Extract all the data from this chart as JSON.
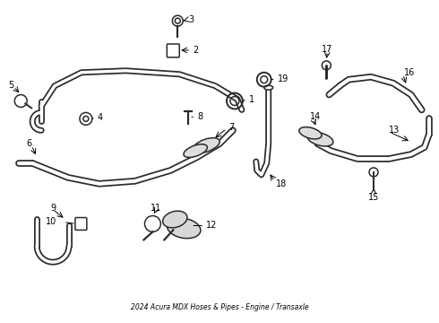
{
  "title": "2024 Acura MDX Hoses & Pipes - Engine / Transaxle",
  "bg_color": "#ffffff",
  "line_color": "#2a2a2a",
  "label_color": "#000000",
  "lw_tube": 5.0,
  "lw_inner": 2.5,
  "lw_thin": 1.1,
  "fontsize": 7
}
